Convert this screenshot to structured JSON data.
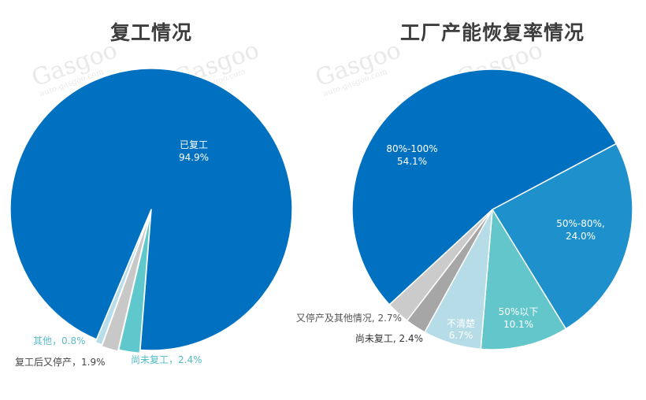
{
  "chart_data": [
    {
      "type": "pie",
      "title": "复工情况",
      "start_angle_deg": 94.5,
      "direction": "clockwise",
      "slices": [
        {
          "label": "尚未复工",
          "value": 2.4,
          "display": "尚未复工，2.4%",
          "color": "#5ec8cc",
          "label_color": "#4fbcc4",
          "explode": 4
        },
        {
          "label": "复工后又停产",
          "value": 1.9,
          "display": "复工后又停产，1.9%",
          "color": "#c8c8c8",
          "label_color": "#444444",
          "explode": 6
        },
        {
          "label": "其他",
          "value": 0.8,
          "display": "其他，0.8%",
          "color": "#b7dde9",
          "label_color": "#5bbcc8",
          "explode": 4
        },
        {
          "label": "已复工",
          "value": 94.9,
          "display_line1": "已复工",
          "display_line2": "94.9%",
          "color": "#0070c0",
          "label_color": "#ffffff",
          "explode": 0
        }
      ]
    },
    {
      "type": "pie",
      "title": "工厂产能恢复率情况",
      "start_angle_deg": -28,
      "direction": "clockwise",
      "slices": [
        {
          "label": "50%-80%",
          "value": 24.0,
          "display_line1": "50%-80%,",
          "display_line2": "24.0%",
          "color": "#1e90cc",
          "label_color": "#ffffff"
        },
        {
          "label": "50%以下",
          "value": 10.1,
          "display_line1": "50%以下",
          "display_line2": "10.1%",
          "color": "#62c6ca",
          "label_color": "#ffffff"
        },
        {
          "label": "不清楚",
          "value": 6.7,
          "display_line1": "不清楚",
          "display_line2": "6.7%",
          "color": "#b6dce8",
          "label_color": "#ffffff"
        },
        {
          "label": "尚未复工",
          "value": 2.4,
          "display": "尚未复工, 2.4%",
          "color": "#a6a6a6",
          "label_color": "#333333"
        },
        {
          "label": "又停产及其他情况",
          "value": 2.7,
          "display": "又停产及其他情况, 2.7%",
          "color": "#cbcbcb",
          "label_color": "#555555"
        },
        {
          "label": "80%-100%",
          "value": 54.1,
          "display_line1": "80%-100%",
          "display_line2": "54.1%",
          "color": "#0070c0",
          "label_color": "#ffffff"
        }
      ]
    }
  ],
  "titles": {
    "left": "复工情况",
    "right": "工厂产能恢复率情况"
  },
  "labels": {
    "left": {
      "done_l1": "已复工",
      "done_l2": "94.9%",
      "other": "其他，0.8%",
      "restopped": "复工后又停产，1.9%",
      "not_resumed": "尚未复工，2.4%"
    },
    "right": {
      "hi_l1": "80%-100%",
      "hi_l2": "54.1%",
      "mid_l1": "50%-80%,",
      "mid_l2": "24.0%",
      "low_l1": "50%以下",
      "low_l2": "10.1%",
      "unk_l1": "不清楚",
      "unk_l2": "6.7%",
      "not_resumed": "尚未复工, 2.4%",
      "stopped_other": "又停产及其他情况, 2.7%"
    }
  },
  "watermark": {
    "brand": "Gasgoo",
    "cn": "盖世汽车",
    "url": "auto.gasgoo.com"
  }
}
